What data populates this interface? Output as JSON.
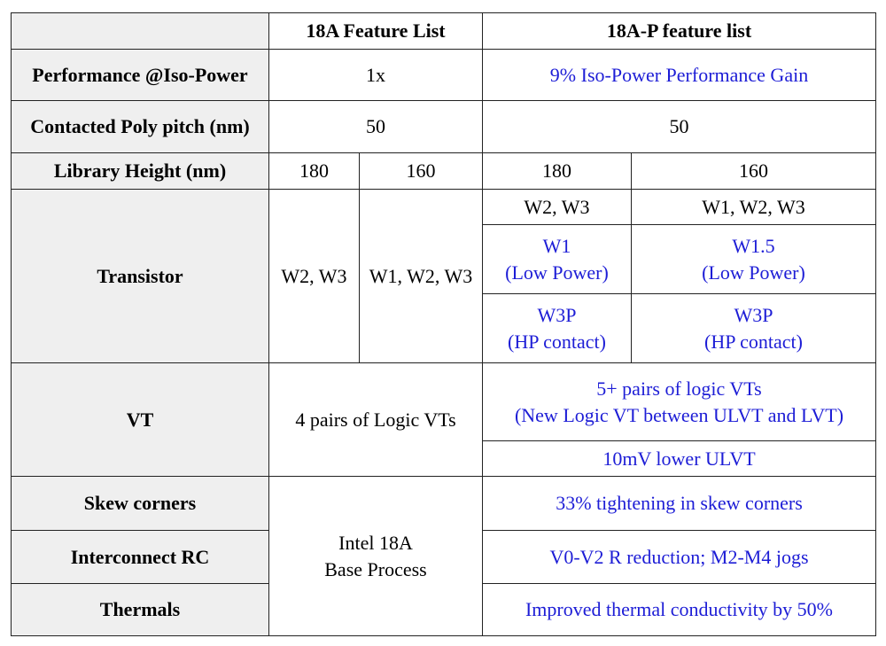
{
  "header": {
    "corner": "",
    "col_18a": "18A Feature List",
    "col_18ap": "18A-P feature list"
  },
  "perf": {
    "label": "Performance @Iso-Power",
    "v18a": "1x",
    "v18ap": "9% Iso-Power Performance Gain"
  },
  "cpp": {
    "label": "Contacted Poly pitch (nm)",
    "v18a": "50",
    "v18ap": "50"
  },
  "libh": {
    "label": "Library Height (nm)",
    "a180": "180",
    "a160": "160",
    "p180": "180",
    "p160": "160"
  },
  "transistor": {
    "label": "Transistor",
    "a180": "W2, W3",
    "a160": "W1, W2, W3",
    "p180_std": "W2, W3",
    "p160_std": "W1, W2, W3",
    "p180_low_1": "W1",
    "p180_low_2": "(Low Power)",
    "p160_low_1": "W1.5",
    "p160_low_2": "(Low Power)",
    "p180_hp_1": "W3P",
    "p180_hp_2": "(HP contact)",
    "p160_hp_1": "W3P",
    "p160_hp_2": "(HP contact)"
  },
  "vt": {
    "label": "VT",
    "v18a": "4 pairs of Logic VTs",
    "v18ap_1": "5+ pairs of logic VTs",
    "v18ap_2": "(New Logic VT  between ULVT and LVT)",
    "v18ap_3": "10mV lower ULVT"
  },
  "base": {
    "line1": "Intel 18A",
    "line2": "Base Process"
  },
  "skew": {
    "label": "Skew corners",
    "v18ap": "33% tightening in skew corners"
  },
  "rc": {
    "label": "Interconnect RC",
    "v18ap": "V0-V2 R reduction; M2-M4 jogs"
  },
  "thermals": {
    "label": "Thermals",
    "v18ap": "Improved thermal conductivity by 50%"
  }
}
